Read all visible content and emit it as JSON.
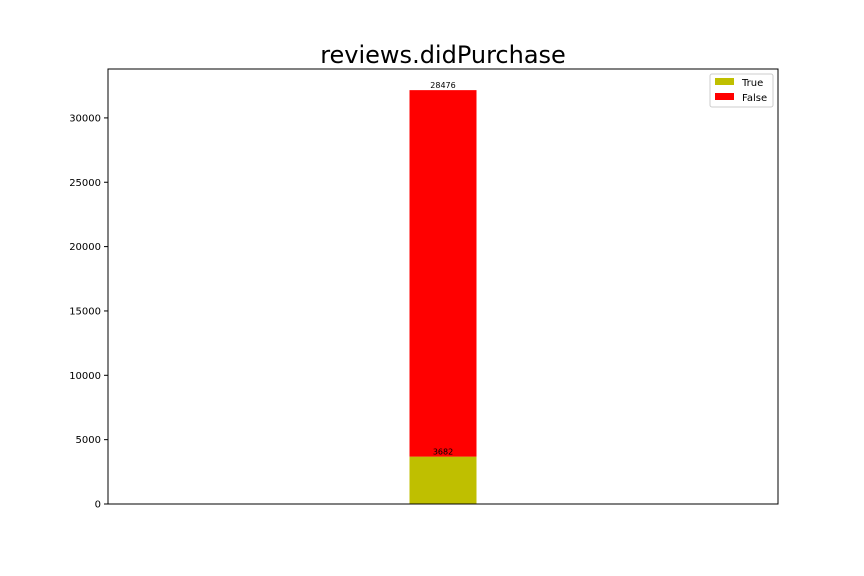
{
  "chart_data": {
    "type": "bar",
    "stacked": true,
    "title": "reviews.didPurchase",
    "xlabel": "",
    "ylabel": "",
    "categories": [
      ""
    ],
    "ylim": [
      0,
      33800
    ],
    "yticks": [
      0,
      5000,
      10000,
      15000,
      20000,
      25000,
      30000
    ],
    "series": [
      {
        "name": "True",
        "values": [
          3682
        ],
        "color": "#bfbf00"
      },
      {
        "name": "False",
        "values": [
          28476
        ],
        "color": "#ff0000"
      }
    ],
    "data_labels": [
      "3682",
      "28476"
    ],
    "legend": {
      "position": "top-right",
      "entries": [
        "True",
        "False"
      ]
    },
    "grid": false
  }
}
